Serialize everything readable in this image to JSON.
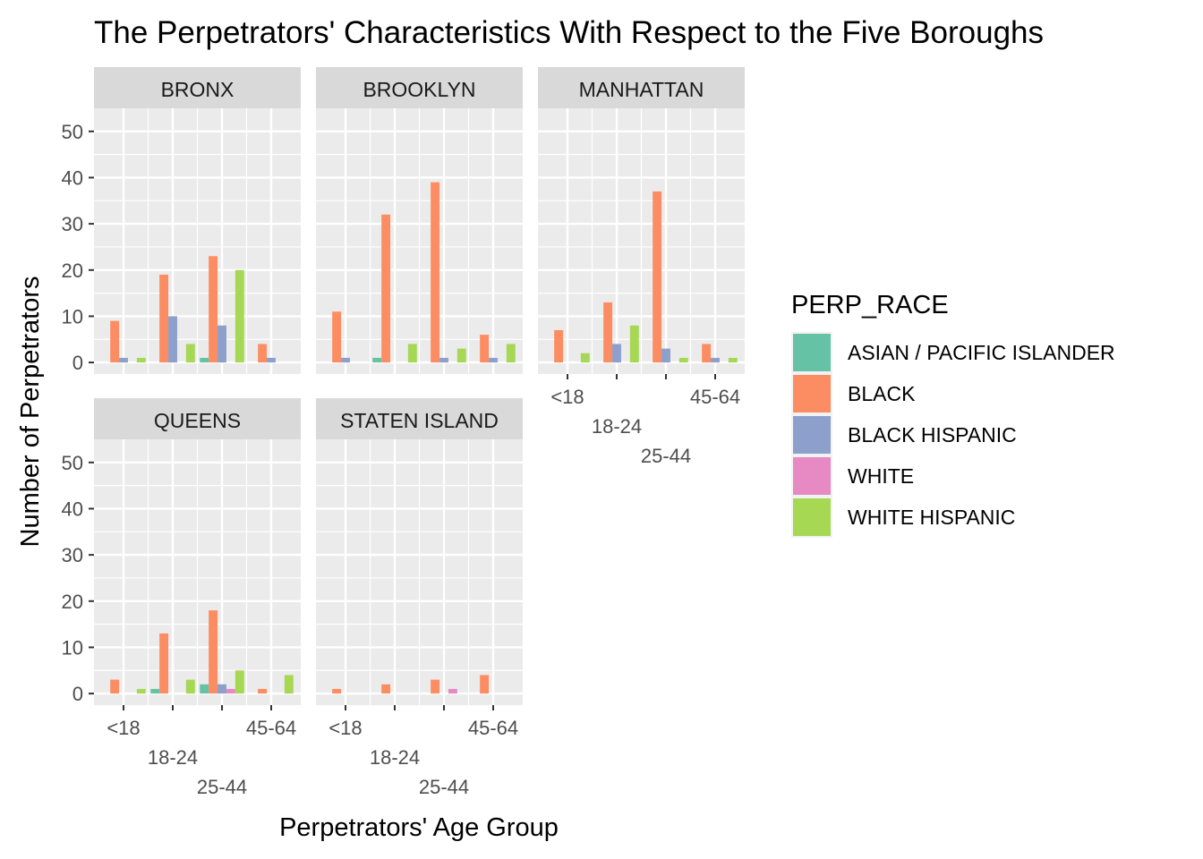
{
  "chart_data": {
    "type": "bar",
    "title": "The Perpetrators' Characteristics With Respect to the Five Boroughs",
    "xlabel": "Perpetrators' Age Group",
    "ylabel": "Number of Perpetrators",
    "ylim": [
      -2.5,
      55
    ],
    "yticks": [
      0,
      10,
      20,
      30,
      40,
      50
    ],
    "categories": [
      "<18",
      "18-24",
      "25-44",
      "45-64"
    ],
    "legend": {
      "title": "PERP_RACE",
      "position": "right",
      "entries": [
        {
          "name": "ASIAN / PACIFIC ISLANDER",
          "color": "#66C2A5"
        },
        {
          "name": "BLACK",
          "color": "#FC8D62"
        },
        {
          "name": "BLACK HISPANIC",
          "color": "#8DA0CB"
        },
        {
          "name": "WHITE",
          "color": "#E78AC3"
        },
        {
          "name": "WHITE HISPANIC",
          "color": "#A6D854"
        }
      ]
    },
    "panels": [
      {
        "name": "BRONX",
        "series": [
          {
            "name": "ASIAN / PACIFIC ISLANDER",
            "values": [
              null,
              null,
              1,
              null
            ]
          },
          {
            "name": "BLACK",
            "values": [
              9,
              19,
              23,
              4
            ]
          },
          {
            "name": "BLACK HISPANIC",
            "values": [
              1,
              10,
              8,
              1
            ]
          },
          {
            "name": "WHITE",
            "values": [
              null,
              null,
              null,
              null
            ]
          },
          {
            "name": "WHITE HISPANIC",
            "values": [
              1,
              4,
              20,
              null
            ]
          }
        ]
      },
      {
        "name": "BROOKLYN",
        "series": [
          {
            "name": "ASIAN / PACIFIC ISLANDER",
            "values": [
              null,
              1,
              null,
              null
            ]
          },
          {
            "name": "BLACK",
            "values": [
              11,
              32,
              39,
              6
            ]
          },
          {
            "name": "BLACK HISPANIC",
            "values": [
              1,
              null,
              1,
              1
            ]
          },
          {
            "name": "WHITE",
            "values": [
              null,
              null,
              null,
              null
            ]
          },
          {
            "name": "WHITE HISPANIC",
            "values": [
              null,
              4,
              3,
              4
            ]
          }
        ]
      },
      {
        "name": "MANHATTAN",
        "series": [
          {
            "name": "ASIAN / PACIFIC ISLANDER",
            "values": [
              null,
              null,
              null,
              null
            ]
          },
          {
            "name": "BLACK",
            "values": [
              7,
              13,
              37,
              4
            ]
          },
          {
            "name": "BLACK HISPANIC",
            "values": [
              null,
              4,
              3,
              1
            ]
          },
          {
            "name": "WHITE",
            "values": [
              null,
              null,
              null,
              null
            ]
          },
          {
            "name": "WHITE HISPANIC",
            "values": [
              2,
              8,
              1,
              1
            ]
          }
        ]
      },
      {
        "name": "QUEENS",
        "series": [
          {
            "name": "ASIAN / PACIFIC ISLANDER",
            "values": [
              null,
              1,
              2,
              null
            ]
          },
          {
            "name": "BLACK",
            "values": [
              3,
              13,
              18,
              1
            ]
          },
          {
            "name": "BLACK HISPANIC",
            "values": [
              null,
              null,
              2,
              null
            ]
          },
          {
            "name": "WHITE",
            "values": [
              null,
              null,
              1,
              null
            ]
          },
          {
            "name": "WHITE HISPANIC",
            "values": [
              1,
              3,
              5,
              4
            ]
          }
        ]
      },
      {
        "name": "STATEN ISLAND",
        "series": [
          {
            "name": "ASIAN / PACIFIC ISLANDER",
            "values": [
              null,
              null,
              null,
              null
            ]
          },
          {
            "name": "BLACK",
            "values": [
              1,
              2,
              3,
              4
            ]
          },
          {
            "name": "BLACK HISPANIC",
            "values": [
              null,
              null,
              null,
              null
            ]
          },
          {
            "name": "WHITE",
            "values": [
              null,
              null,
              1,
              null
            ]
          },
          {
            "name": "WHITE HISPANIC",
            "values": [
              null,
              null,
              null,
              null
            ]
          }
        ]
      }
    ]
  }
}
